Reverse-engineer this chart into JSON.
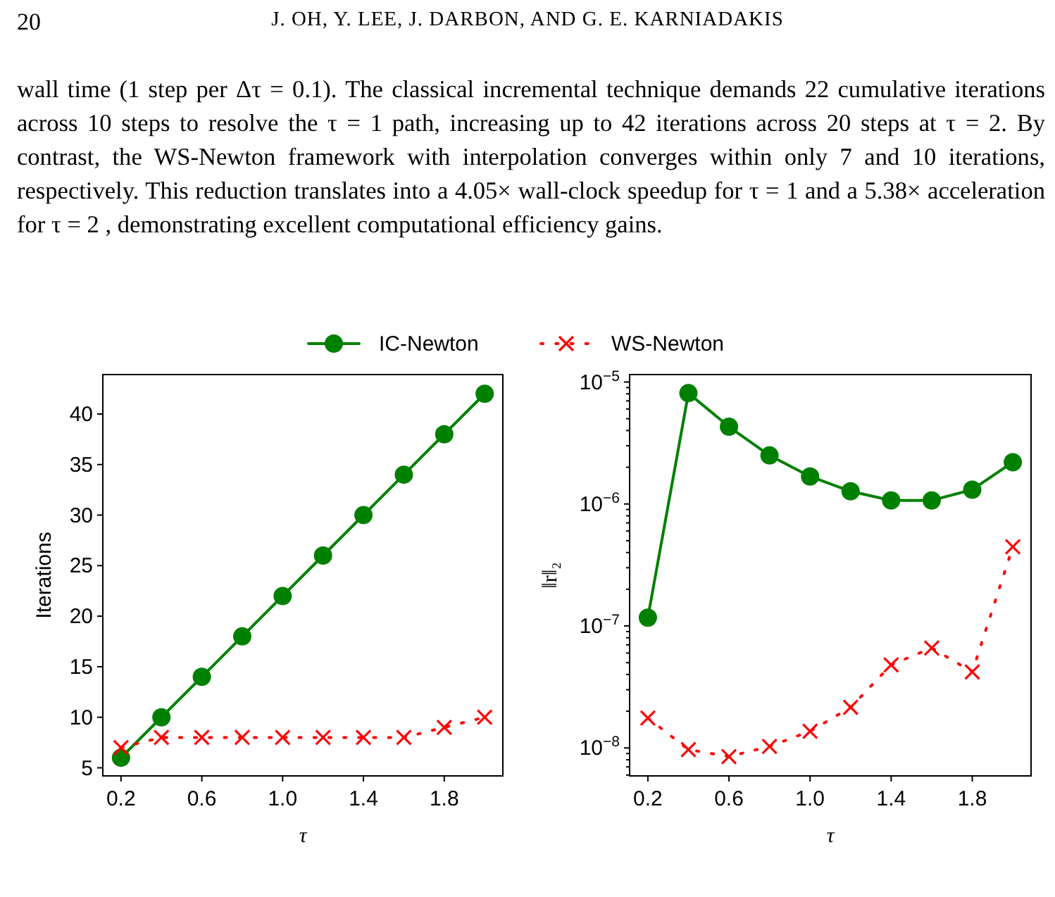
{
  "chart_data": [
    {
      "type": "line",
      "xlabel": "τ",
      "ylabel": "Iterations",
      "legend": "top",
      "grid": false,
      "annotations": [
        "20",
        "J. OH, Y. LEE, J. DARBON, AND G. E. KARNIADAKIS",
        "wall time (1 step per Δτ = 0.1). The classical incremental technique demands 22 cumulative iterations across 10 steps to resolve the τ = 1 path, increasing up to 42 iterations across 20 steps at τ = 2. By contrast, the WS-Newton framework with interpolation converges within only 7 and 10 iterations, respectively. This reduction translates into a 4.05× wall-clock speedup for τ = 1 and a 5.38× acceleration for τ = 2 , demonstrating excellent computational efficiency gains."
      ],
      "x": [
        0.2,
        0.4,
        0.6,
        0.8,
        1.0,
        1.2,
        1.4,
        1.6,
        1.8,
        2.0
      ],
      "xlim": [
        0.11,
        2.09
      ],
      "xticks": [
        0.2,
        0.6,
        {
          "value": 1.0,
          "label": "1.0"
        },
        1.4,
        1.8
      ],
      "ylim": [
        4.2,
        43.9
      ],
      "yticks": [
        5,
        10,
        15,
        20,
        25,
        30,
        35,
        40
      ],
      "series": [
        {
          "name": "IC-Newton",
          "color": "#008000",
          "marker": "circle",
          "line_style": "solid",
          "values": [
            6,
            10,
            14,
            18,
            22,
            26,
            30,
            34,
            38,
            42
          ]
        },
        {
          "name": "WS-Newton",
          "color": "#ff0000",
          "marker": "cross",
          "line_style": "dotted",
          "values": [
            7,
            8,
            8,
            8,
            8,
            8,
            8,
            8,
            9,
            10
          ]
        }
      ]
    },
    {
      "type": "line",
      "xlabel": "τ",
      "ylabel": "‖r‖₂",
      "log": "y",
      "grid": false,
      "x": [
        0.2,
        0.4,
        0.6,
        0.8,
        1.0,
        1.2,
        1.4,
        1.6,
        1.8,
        2.0
      ],
      "xlim": [
        0.11,
        2.09
      ],
      "xticks": [
        0.2,
        0.6,
        {
          "value": 1.0,
          "label": "1.0"
        },
        1.4,
        1.8
      ],
      "ylim": [
        5.9e-09,
        1.15e-05
      ],
      "yticks": [
        {
          "value": 6e-09,
          "label": null
        },
        {
          "value": 7e-09,
          "label": null
        },
        {
          "value": 8e-09,
          "label": null
        },
        {
          "value": 9e-09,
          "label": null
        },
        {
          "value": 1e-08,
          "label": "10$^{−8}$"
        },
        {
          "value": 2e-08,
          "label": null
        },
        {
          "value": 3e-08,
          "label": null
        },
        {
          "value": 4e-08,
          "label": null
        },
        {
          "value": 5e-08,
          "label": null
        },
        {
          "value": 6e-08,
          "label": null
        },
        {
          "value": 7e-08,
          "label": null
        },
        {
          "value": 8e-08,
          "label": null
        },
        {
          "value": 9e-08,
          "label": null
        },
        {
          "value": 1e-07,
          "label": "10$^{−7}$"
        },
        {
          "value": 2e-07,
          "label": null
        },
        {
          "value": 3e-07,
          "label": null
        },
        {
          "value": 4e-07,
          "label": null
        },
        {
          "value": 5e-07,
          "label": null
        },
        {
          "value": 6e-07,
          "label": null
        },
        {
          "value": 7e-07,
          "label": null
        },
        {
          "value": 8e-07,
          "label": null
        },
        {
          "value": 9e-07,
          "label": null
        },
        {
          "value": 1e-06,
          "label": "10$^{−6}$"
        },
        {
          "value": 2e-06,
          "label": null
        },
        {
          "value": 3e-06,
          "label": null
        },
        {
          "value": 4e-06,
          "label": null
        },
        {
          "value": 5e-06,
          "label": null
        },
        {
          "value": 6e-06,
          "label": null
        },
        {
          "value": 7e-06,
          "label": null
        },
        {
          "value": 8e-06,
          "label": null
        },
        {
          "value": 9e-06,
          "label": null
        },
        {
          "value": 1e-05,
          "label": "10$^{−5}$"
        }
      ],
      "series": [
        {
          "color": "#008000",
          "marker": "circle",
          "line_style": "solid",
          "values": [
            1.17e-07,
            8.1e-06,
            4.3e-06,
            2.5e-06,
            1.68e-06,
            1.27e-06,
            1.07e-06,
            1.07e-06,
            1.31e-06,
            2.2e-06
          ]
        },
        {
          "color": "#ff0000",
          "marker": "cross",
          "line_style": "dotted",
          "values": [
            1.76e-08,
            9.7e-09,
            8.5e-09,
            1.03e-08,
            1.37e-08,
            2.15e-08,
            4.8e-08,
            6.6e-08,
            4.2e-08,
            4.45e-07
          ]
        }
      ]
    }
  ]
}
